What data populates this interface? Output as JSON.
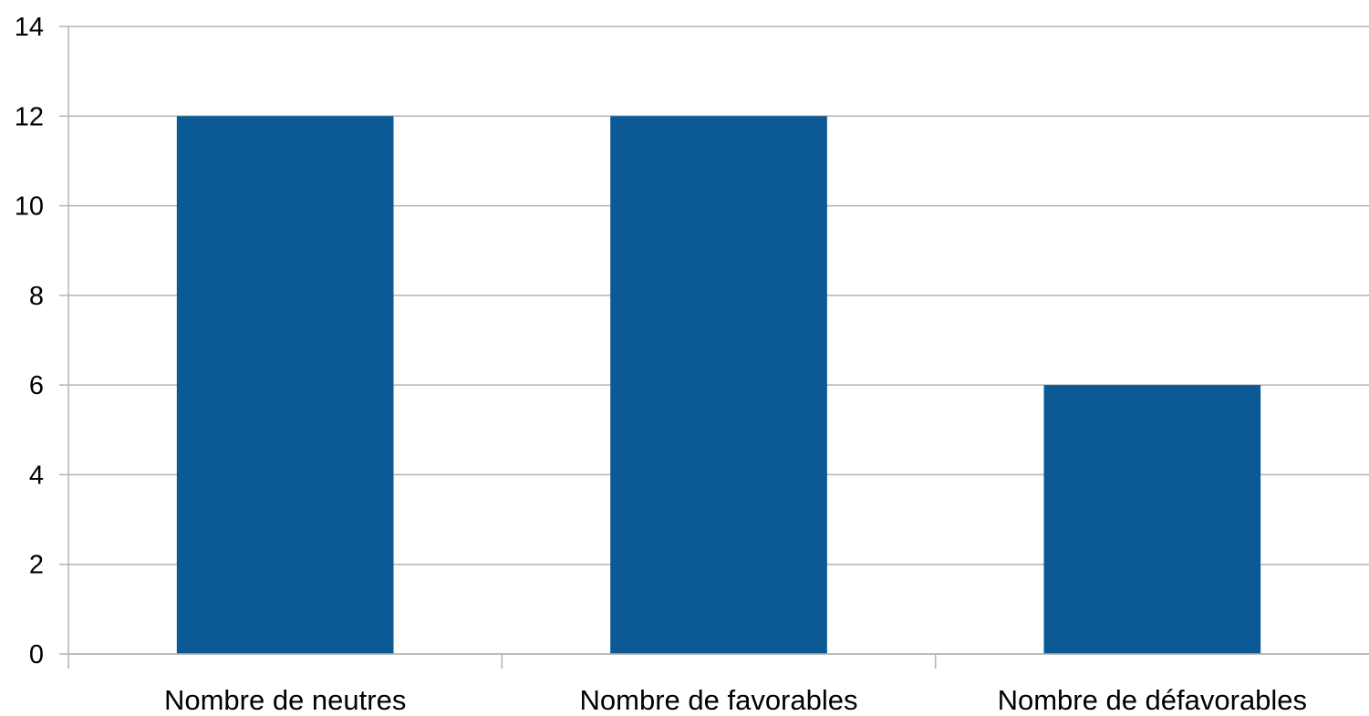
{
  "chart_data": {
    "type": "bar",
    "title": "",
    "xlabel": "",
    "ylabel": "",
    "categories": [
      "Nombre de neutres",
      "Nombre de favorables",
      "Nombre de défavorables"
    ],
    "values": [
      12,
      12,
      6
    ],
    "ylim": [
      0,
      14
    ],
    "yticks": [
      0,
      2,
      4,
      6,
      8,
      10,
      12,
      14
    ],
    "grid": true,
    "legend": "none",
    "colors": {
      "bar": "#0b5a96",
      "grid": "#b3b3b3",
      "axis": "#b3b3b3",
      "text": "#000000"
    }
  }
}
